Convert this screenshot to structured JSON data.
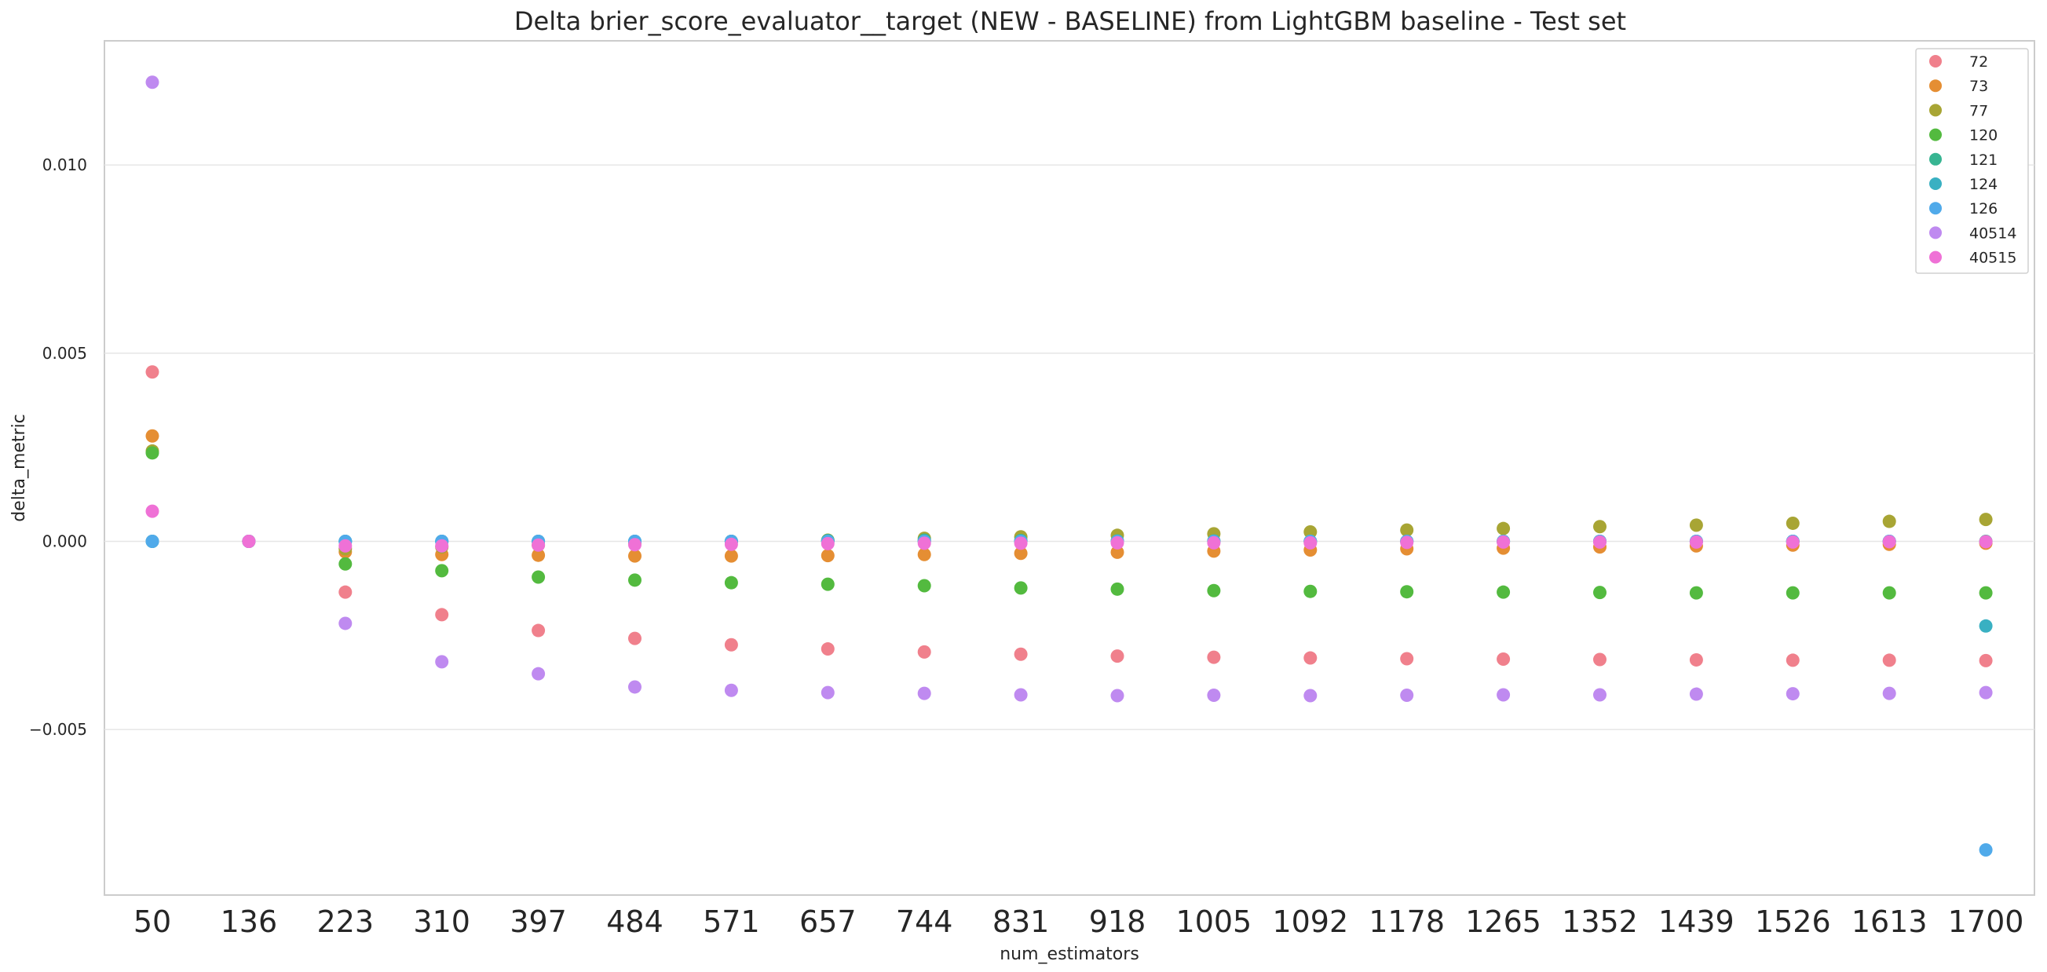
{
  "chart_data": {
    "type": "scatter",
    "title": "Delta brier_score_evaluator__target (NEW - BASELINE) from LightGBM baseline - Test set",
    "xlabel": "num_estimators",
    "ylabel": "delta_metric",
    "categories": [
      "50",
      "136",
      "223",
      "310",
      "397",
      "484",
      "571",
      "657",
      "744",
      "831",
      "918",
      "1005",
      "1092",
      "1178",
      "1265",
      "1352",
      "1439",
      "1526",
      "1613",
      "1700"
    ],
    "yticks": [
      {
        "value": 0.01,
        "label": "0.010"
      },
      {
        "value": 0.005,
        "label": "0.005"
      },
      {
        "value": 0.0,
        "label": "0.000"
      },
      {
        "value": -0.005,
        "label": "−0.005"
      }
    ],
    "ylim": [
      -0.0094,
      0.0133
    ],
    "grid": "horizontal",
    "legend_position": "top-right",
    "series": [
      {
        "name": "72",
        "color": "#f0808c",
        "values": [
          0.0045,
          0,
          -0.00135,
          -0.00195,
          -0.00237,
          -0.00258,
          -0.00275,
          -0.00286,
          -0.00294,
          -0.003,
          -0.00305,
          -0.00308,
          -0.0031,
          -0.00312,
          -0.00313,
          -0.00314,
          -0.00315,
          -0.00316,
          -0.00316,
          -0.00317
        ]
      },
      {
        "name": "73",
        "color": "#e58e33",
        "values": [
          0.0028,
          0,
          -0.00028,
          -0.00035,
          -0.00037,
          -0.00039,
          -0.00039,
          -0.00038,
          -0.00035,
          -0.00032,
          -0.00029,
          -0.00026,
          -0.00023,
          -0.0002,
          -0.00018,
          -0.00015,
          -0.00012,
          -0.0001,
          -8e-05,
          -5e-05
        ]
      },
      {
        "name": "77",
        "color": "#a8a534",
        "values": [
          0.0024,
          0,
          -0.0002,
          -0.00015,
          -0.0001,
          -5e-05,
          0.0,
          3e-05,
          8e-05,
          0.00012,
          0.00016,
          0.0002,
          0.00025,
          0.0003,
          0.00034,
          0.00039,
          0.00043,
          0.00048,
          0.00053,
          0.00058
        ]
      },
      {
        "name": "120",
        "color": "#53ba3f",
        "values": [
          0.00235,
          0,
          -0.0006,
          -0.00078,
          -0.00095,
          -0.00103,
          -0.0011,
          -0.00114,
          -0.00118,
          -0.00124,
          -0.00127,
          -0.00131,
          -0.00133,
          -0.00134,
          -0.00135,
          -0.00136,
          -0.00137,
          -0.00137,
          -0.00137,
          -0.00137
        ]
      },
      {
        "name": "121",
        "color": "#37b592",
        "values": [
          0,
          0,
          0,
          0,
          0,
          0,
          0,
          2e-05,
          3e-05,
          2e-05,
          1e-05,
          1e-05,
          0,
          0,
          0,
          0,
          0,
          0,
          0,
          0
        ]
      },
      {
        "name": "124",
        "color": "#39b0c2",
        "values": [
          0,
          0,
          0,
          0,
          0,
          0,
          0,
          0,
          0,
          0,
          0,
          0,
          0,
          0,
          0,
          0,
          0,
          0,
          0,
          -0.00225
        ]
      },
      {
        "name": "126",
        "color": "#50aaea",
        "values": [
          0,
          0,
          0,
          0,
          0,
          0,
          0,
          0,
          0,
          0,
          0,
          0,
          0,
          0,
          0,
          0,
          0,
          0,
          0,
          -0.0082
        ]
      },
      {
        "name": "40514",
        "color": "#bf8af0",
        "values": [
          0.0122,
          0,
          -0.00218,
          -0.0032,
          -0.00352,
          -0.00387,
          -0.00396,
          -0.00402,
          -0.00404,
          -0.00408,
          -0.0041,
          -0.00409,
          -0.0041,
          -0.00409,
          -0.00408,
          -0.00408,
          -0.00406,
          -0.00405,
          -0.00404,
          -0.00402
        ]
      },
      {
        "name": "40515",
        "color": "#ef71d6",
        "values": [
          0.0008,
          0,
          -0.00012,
          -0.00012,
          -0.0001,
          -9e-05,
          -8e-05,
          -6e-05,
          -5e-05,
          -5e-05,
          -4e-05,
          -4e-05,
          -4e-05,
          -3e-05,
          -2e-05,
          -2e-05,
          -2e-05,
          -2e-05,
          -1e-05,
          -1e-05
        ]
      }
    ]
  }
}
